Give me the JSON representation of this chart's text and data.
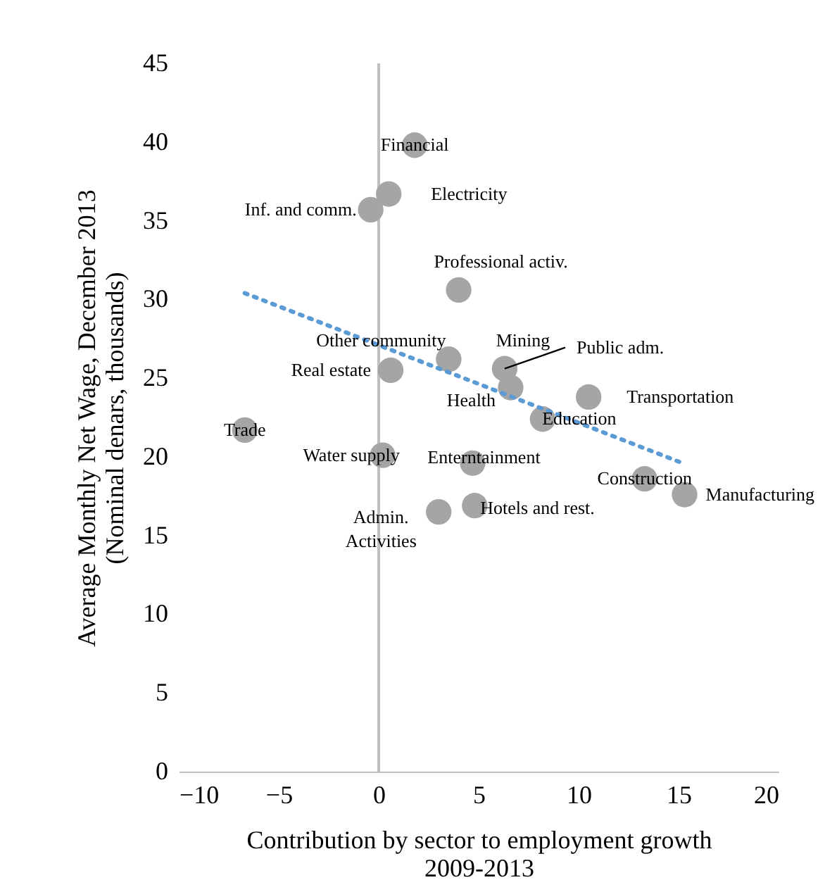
{
  "chart_data": {
    "type": "scatter",
    "xlabel": "Contribution by sector to employment growth\n2009-2013",
    "ylabel": "Average Monthly Net Wage, December 2013\n(Nominal denars, thousands)",
    "xlim": [
      -10,
      20
    ],
    "xticks": [
      -10,
      -5,
      0,
      5,
      10,
      15,
      20
    ],
    "ylim": [
      0,
      45
    ],
    "yticks": [
      0,
      5,
      10,
      15,
      20,
      25,
      30,
      35,
      40,
      45
    ],
    "grid": false,
    "ref_lines": [
      {
        "axis": "x",
        "value": 0,
        "color": "#bfbfbf"
      }
    ],
    "series": [
      {
        "color": "#a5a5a5",
        "marker": "circle",
        "x": [
          1.8,
          0.5,
          -0.4,
          4.0,
          3.5,
          6.3,
          0.6,
          6.6,
          -6.7,
          0.2,
          4.7,
          3.0,
          4.8,
          10.5,
          8.2,
          13.3,
          15.3
        ],
        "values": [
          39.8,
          36.7,
          35.7,
          30.6,
          26.2,
          25.6,
          25.5,
          24.4,
          21.7,
          20.1,
          19.6,
          16.5,
          16.9,
          23.8,
          22.4,
          18.6,
          17.6
        ]
      },
      {
        "type": "line",
        "color": "#5b9bd5",
        "line_style": "dotted",
        "marker": "none",
        "x": [
          -6.7,
          15.2
        ],
        "values": [
          30.4,
          19.6
        ]
      }
    ],
    "annotations": [
      {
        "text": "Financial",
        "x": 1.8,
        "y": 39.8
      },
      {
        "text": "Electricity",
        "x": 0.5,
        "y": 36.7
      },
      {
        "text": "Inf. and comm.",
        "x": -0.4,
        "y": 35.7
      },
      {
        "text": "Professional activ.",
        "x": 4.0,
        "y": 30.6
      },
      {
        "text": "Other community",
        "x": 3.5,
        "y": 26.2
      },
      {
        "text": "Mining",
        "x": 6.3,
        "y": 25.6
      },
      {
        "text": "Public adm.",
        "x": 6.3,
        "y": 25.6
      },
      {
        "text": "Real estate",
        "x": 0.6,
        "y": 25.5
      },
      {
        "text": "Health",
        "x": 6.6,
        "y": 24.4
      },
      {
        "text": "Trade",
        "x": -6.7,
        "y": 21.7
      },
      {
        "text": "Water supply",
        "x": 0.2,
        "y": 20.1
      },
      {
        "text": "Enterntainment",
        "x": 4.7,
        "y": 19.6
      },
      {
        "text": "Admin.\nActivities",
        "x": 3.0,
        "y": 16.5
      },
      {
        "text": "Hotels and rest.",
        "x": 4.8,
        "y": 16.9
      },
      {
        "text": "Transportation",
        "x": 10.5,
        "y": 23.8
      },
      {
        "text": "Education",
        "x": 8.2,
        "y": 22.4
      },
      {
        "text": "Construction",
        "x": 13.3,
        "y": 18.6
      },
      {
        "text": "Manufacturing",
        "x": 15.3,
        "y": 17.6
      }
    ]
  }
}
